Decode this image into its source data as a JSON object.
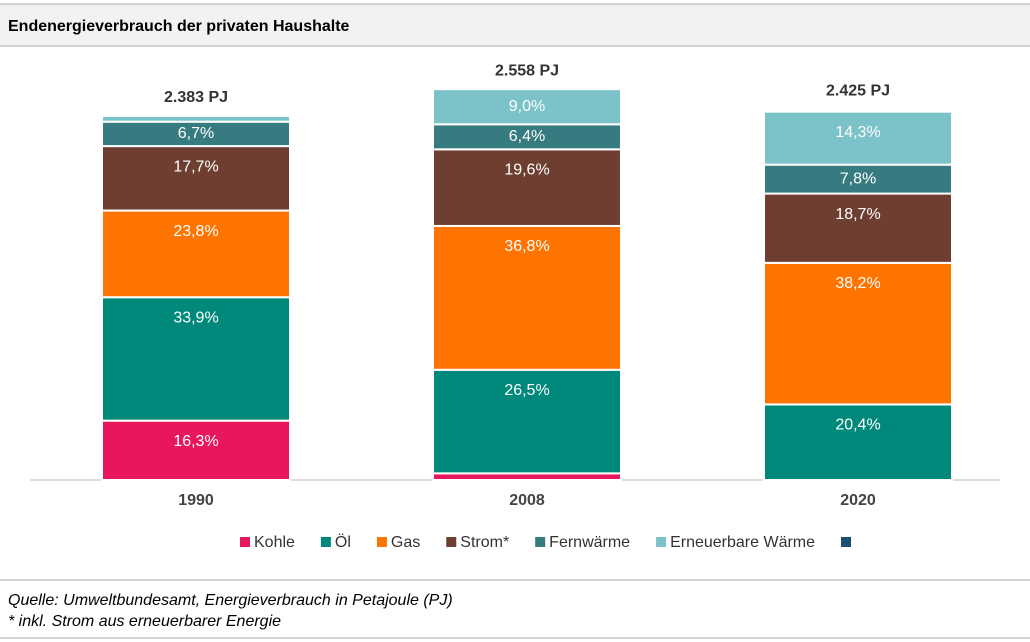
{
  "chart_data": {
    "type": "stacked_bar",
    "title": "Endenergieverbrauch der privaten Haushalte",
    "categories": [
      "1990",
      "2008",
      "2020"
    ],
    "totals": [
      2383,
      2558,
      2425
    ],
    "total_labels": [
      "2.383 PJ",
      "2.558 PJ",
      "2.425 PJ"
    ],
    "series": [
      {
        "name": "Kohle",
        "color": "#e8175d",
        "values": [
          16.3,
          1.7,
          0
        ],
        "value_labels": [
          "16,3%",
          null,
          null
        ]
      },
      {
        "name": "Öl",
        "color": "#00897b",
        "values": [
          33.9,
          26.5,
          20.4
        ],
        "value_labels": [
          "33,9%",
          "26,5%",
          "20,4%"
        ]
      },
      {
        "name": "Gas",
        "color": "#ff7300",
        "values": [
          23.8,
          36.8,
          38.2
        ],
        "value_labels": [
          "23,8%",
          "36,8%",
          "38,2%"
        ]
      },
      {
        "name": "Strom*",
        "color": "#6e3f30",
        "values": [
          17.7,
          19.6,
          18.7
        ],
        "value_labels": [
          "17,7%",
          "19,6%",
          "18,7%"
        ]
      },
      {
        "name": "Fernwärme",
        "color": "#357b80",
        "values": [
          6.7,
          6.4,
          7.8
        ],
        "value_labels": [
          "6,7%",
          "6,4%",
          "7,8%"
        ]
      },
      {
        "name": "Erneuerbare Wärme",
        "color": "#7bc3c9",
        "values": [
          1.6,
          9.0,
          14.3
        ],
        "value_labels": [
          null,
          "9,0%",
          "14,3%"
        ]
      },
      {
        "name": null,
        "color": "#1d4f73",
        "values": [
          null,
          null,
          null
        ]
      }
    ],
    "notes": [
      "Quelle: Umweltbundesamt, Energieverbrauch in Petajoule (PJ)",
      "* inkl. Strom aus erneuerbarer Energie"
    ]
  }
}
